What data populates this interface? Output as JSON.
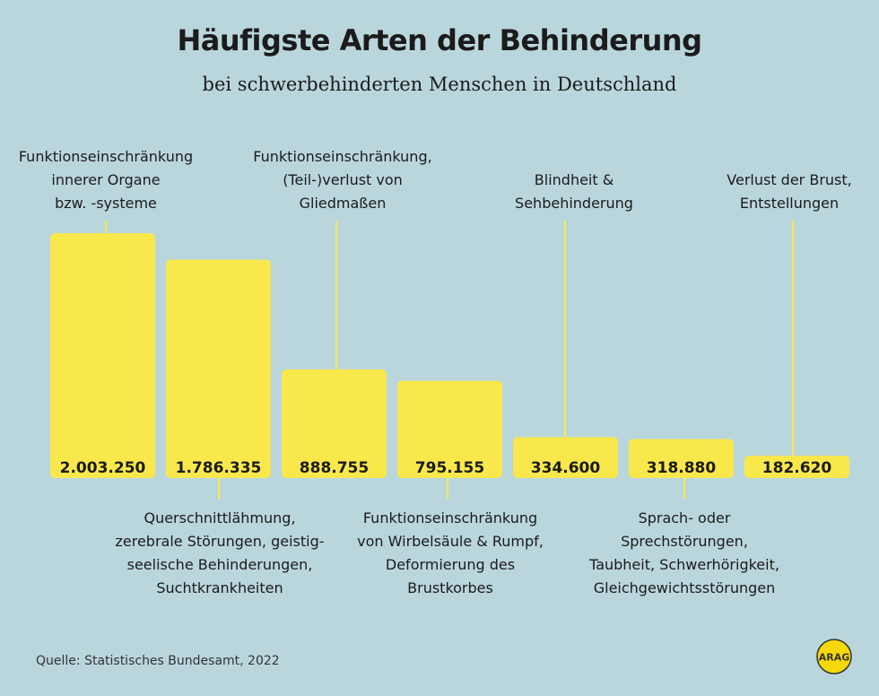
{
  "title": "Häufigste Arten der Behinderung",
  "subtitle": "bei schwerbehinderten Menschen in Deutschland",
  "source": "Quelle:  Statistisches Bundesamt, 2022",
  "logo_text": "ARAG",
  "colors": {
    "background": "#bad6dd",
    "bar": "#f9e84c",
    "text": "#1b1b1b"
  },
  "chart_data": {
    "type": "bar",
    "title": "Häufigste Arten der Behinderung",
    "subtitle": "bei schwerbehinderten Menschen in Deutschland",
    "categories": [
      [
        "Funktionseinschränkung",
        "innerer Organe",
        "bzw. -systeme"
      ],
      [
        "Querschnittlähmung,",
        "zerebrale Störungen, geistig-",
        "seelische Behinderungen,",
        "Suchtkrankheiten"
      ],
      [
        "Funktionseinschränkung,",
        "(Teil-)verlust von",
        "Gliedmaßen"
      ],
      [
        "Funktionseinschränkung",
        "von Wirbelsäule & Rumpf,",
        "Deformierung des",
        "Brustkorbes"
      ],
      [
        "Blindheit &",
        "Sehbehinderung"
      ],
      [
        "Sprach- oder",
        "Sprechstörungen,",
        "Taubheit, Schwerhörigkeit,",
        "Gleichgewichtsstörungen"
      ],
      [
        "Verlust der Brust,",
        "Entstellungen"
      ]
    ],
    "values": [
      2003250,
      1786335,
      888755,
      795155,
      334600,
      318880,
      182620
    ],
    "value_labels": [
      "2.003.250",
      "1.786.335",
      "888.755",
      "795.155",
      "334.600",
      "318.880",
      "182.620"
    ],
    "label_positions": [
      "top",
      "bottom",
      "top",
      "bottom",
      "top",
      "bottom",
      "top"
    ],
    "xlabel": "",
    "ylabel": "",
    "grid": false
  }
}
